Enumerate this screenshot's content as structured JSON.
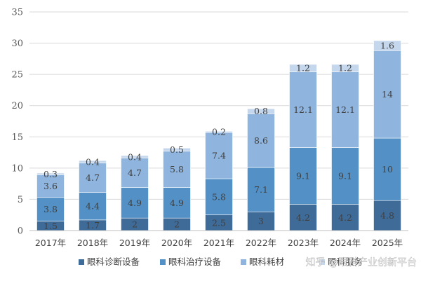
{
  "chart_data": {
    "type": "bar",
    "stacked": true,
    "categories": [
      "2017年",
      "2018年",
      "2019年",
      "2020年",
      "2021年",
      "2022年",
      "2023年",
      "2024年",
      "2025年"
    ],
    "series": [
      {
        "name": "眼科诊断设备",
        "color": "#3f6b99",
        "values": [
          1.5,
          1.7,
          2,
          2,
          2.5,
          3,
          4.2,
          4.2,
          4.8
        ]
      },
      {
        "name": "眼科治疗设备",
        "color": "#5290c6",
        "values": [
          3.8,
          4.4,
          4.9,
          4.9,
          5.8,
          7.1,
          9.1,
          9.1,
          10
        ]
      },
      {
        "name": "眼科耗材",
        "color": "#8fb4de",
        "values": [
          3.6,
          4.7,
          4.7,
          5.8,
          7.4,
          8.6,
          12.1,
          12.1,
          14
        ]
      },
      {
        "name": "眼科服务",
        "color": "#c5d7ed",
        "values": [
          0.3,
          0.4,
          0.4,
          0.5,
          0.2,
          0.8,
          1.2,
          1.2,
          1.6
        ]
      }
    ],
    "ylim": [
      0,
      35
    ],
    "yticks": [
      0,
      5,
      10,
      15,
      20,
      25,
      30,
      35
    ],
    "grid": true,
    "legend_position": "bottom",
    "title": "",
    "xlabel": "",
    "ylabel": ""
  },
  "watermark": "知乎 @眼科产业创新平台"
}
